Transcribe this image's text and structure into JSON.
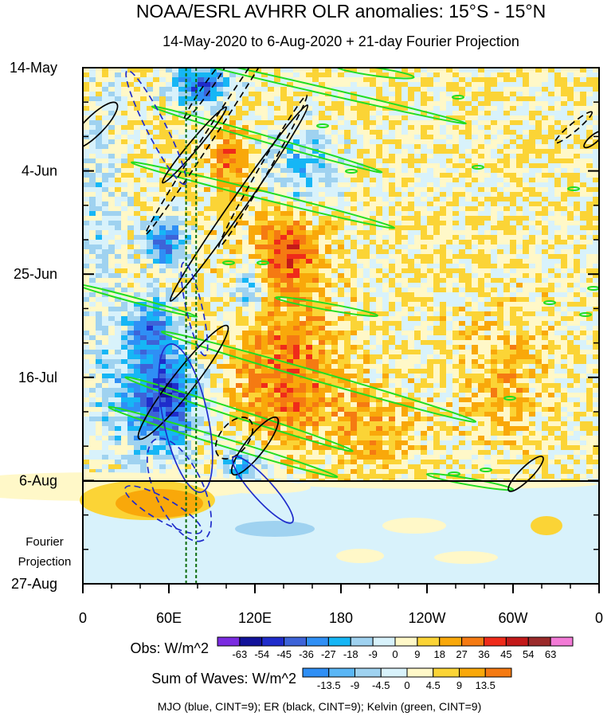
{
  "title": "NOAA/ESRL AVHRR OLR anomalies: 15°S - 15°N",
  "subtitle": "14-May-2020 to 6-Aug-2020 + 21-day Fourier Projection",
  "projection_label_line1": "Fourier",
  "projection_label_line2": "Projection",
  "footer": "MJO (blue, CINT=9); ER (black, CINT=9); Kelvin (green, CINT=9)",
  "chart_data": {
    "type": "heatmap",
    "title": "NOAA/ESRL AVHRR OLR anomalies: 15°S - 15°N",
    "subtitle": "14-May-2020 to 6-Aug-2020 + 21-day Fourier Projection",
    "x_ticks": [
      {
        "label": "0",
        "lon": 0
      },
      {
        "label": "60E",
        "lon": 60
      },
      {
        "label": "120E",
        "lon": 120
      },
      {
        "label": "180",
        "lon": 180
      },
      {
        "label": "120W",
        "lon": 240
      },
      {
        "label": "60W",
        "lon": 300
      },
      {
        "label": "0",
        "lon": 360
      }
    ],
    "y_ticks": [
      {
        "label": "14-May",
        "day": 0
      },
      {
        "label": "4-Jun",
        "day": 21
      },
      {
        "label": "25-Jun",
        "day": 42
      },
      {
        "label": "16-Jul",
        "day": 63
      },
      {
        "label": "6-Aug",
        "day": 84
      },
      {
        "label": "27-Aug",
        "day": 105
      }
    ],
    "xlim": [
      0,
      360
    ],
    "ylim_days": [
      0,
      105
    ],
    "observation_end_day": 84,
    "dashed_reference_lons": [
      72,
      79
    ],
    "obs_colorbar": {
      "label": "Obs: W/m^2",
      "levels": [
        -63,
        -54,
        -45,
        -36,
        -27,
        -18,
        -9,
        0,
        9,
        18,
        27,
        36,
        45,
        54,
        63
      ],
      "colors": [
        "#7a2be0",
        "#12129a",
        "#1f2ccb",
        "#3d63d8",
        "#2f8ff5",
        "#16b6f5",
        "#9fd2f0",
        "#d8f2fb",
        "#fff8c8",
        "#fbd436",
        "#f9a80a",
        "#f57a12",
        "#ef2b1a",
        "#c31919",
        "#9a2a2a",
        "#f27ad6"
      ]
    },
    "waves_colorbar": {
      "label": "Sum of Waves: W/m^2",
      "levels": [
        -13.5,
        -9,
        -4.5,
        0,
        4.5,
        9,
        13.5
      ],
      "colors": [
        "#2f8ff5",
        "#5ab6f5",
        "#9fd2f0",
        "#d8f2fb",
        "#fff8c8",
        "#fbd436",
        "#f9a80a",
        "#f57a12"
      ]
    },
    "contour_legend": [
      {
        "name": "MJO",
        "color": "blue",
        "cint": 9
      },
      {
        "name": "ER",
        "color": "black",
        "cint": 9
      },
      {
        "name": "Kelvin",
        "color": "green",
        "cint": 9
      }
    ]
  }
}
